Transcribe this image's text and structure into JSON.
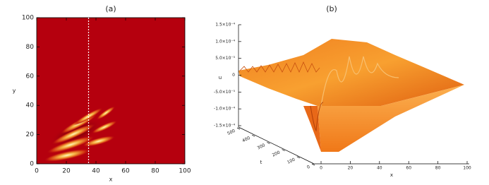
{
  "chart_data": [
    {
      "type": "heatmap",
      "title": "(a)",
      "xlabel": "x",
      "ylabel": "y",
      "xlim": [
        0,
        100
      ],
      "ylim": [
        0,
        100
      ],
      "xticks": [
        0,
        20,
        40,
        60,
        80,
        100
      ],
      "yticks": [
        0,
        20,
        40,
        60,
        80,
        100
      ],
      "dashed_line_x": 35
    },
    {
      "type": "surface3d",
      "title": "(b)",
      "zlabel": "u",
      "xlabel": "x",
      "ylabel": "t",
      "zlim": [
        -0.00015,
        0.00015
      ],
      "zticks": [
        {
          "value": 0.00015,
          "label": "1.5×10⁻⁴"
        },
        {
          "value": 0.0001,
          "label": "1.0×10⁻⁴"
        },
        {
          "value": 5e-05,
          "label": "5.0×10⁻⁵"
        },
        0,
        {
          "value": -5e-05,
          "label": "-5.0×10⁻⁵"
        },
        {
          "value": -0.0001,
          "label": "-1.0×10⁻⁴"
        },
        {
          "value": -0.00015,
          "label": "-1.5×10⁻⁴"
        }
      ],
      "xlim": [
        0,
        100
      ],
      "xticks": [
        0,
        20,
        40,
        60,
        80,
        100
      ],
      "ylim": [
        0,
        500
      ],
      "yticks": [
        0,
        100,
        200,
        300,
        400,
        500
      ]
    }
  ]
}
